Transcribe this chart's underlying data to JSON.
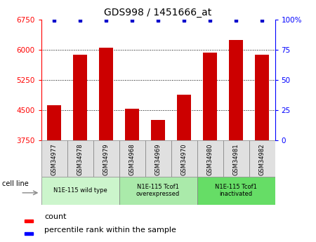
{
  "title": "GDS998 / 1451666_at",
  "samples": [
    "GSM34977",
    "GSM34978",
    "GSM34979",
    "GSM34968",
    "GSM34969",
    "GSM34970",
    "GSM34980",
    "GSM34981",
    "GSM34982"
  ],
  "counts": [
    4620,
    5870,
    6040,
    4530,
    4260,
    4880,
    5920,
    6240,
    5870
  ],
  "percentile_ranks": [
    99,
    99,
    99,
    99,
    99,
    99,
    99,
    99,
    99
  ],
  "ylim_left": [
    3750,
    6750
  ],
  "ylim_right": [
    0,
    100
  ],
  "yticks_left": [
    3750,
    4500,
    5250,
    6000,
    6750
  ],
  "yticks_right": [
    0,
    25,
    50,
    75,
    100
  ],
  "groups": [
    {
      "label": "N1E-115 wild type",
      "start": 0,
      "end": 3,
      "color": "#ccf5cc"
    },
    {
      "label": "N1E-115 Tcof1\noverexpressed",
      "start": 3,
      "end": 6,
      "color": "#aaeaaa"
    },
    {
      "label": "N1E-115 Tcof1\ninactivated",
      "start": 6,
      "end": 9,
      "color": "#66dd66"
    }
  ],
  "bar_color": "#cc0000",
  "dot_color": "#0000cc",
  "bar_width": 0.55,
  "grid_color": "#000000",
  "cell_line_label": "cell line",
  "legend_count_label": "count",
  "legend_pct_label": "percentile rank within the sample",
  "sample_box_color": "#e0e0e0",
  "tick_fontsize": 7.5,
  "legend_fontsize": 8
}
